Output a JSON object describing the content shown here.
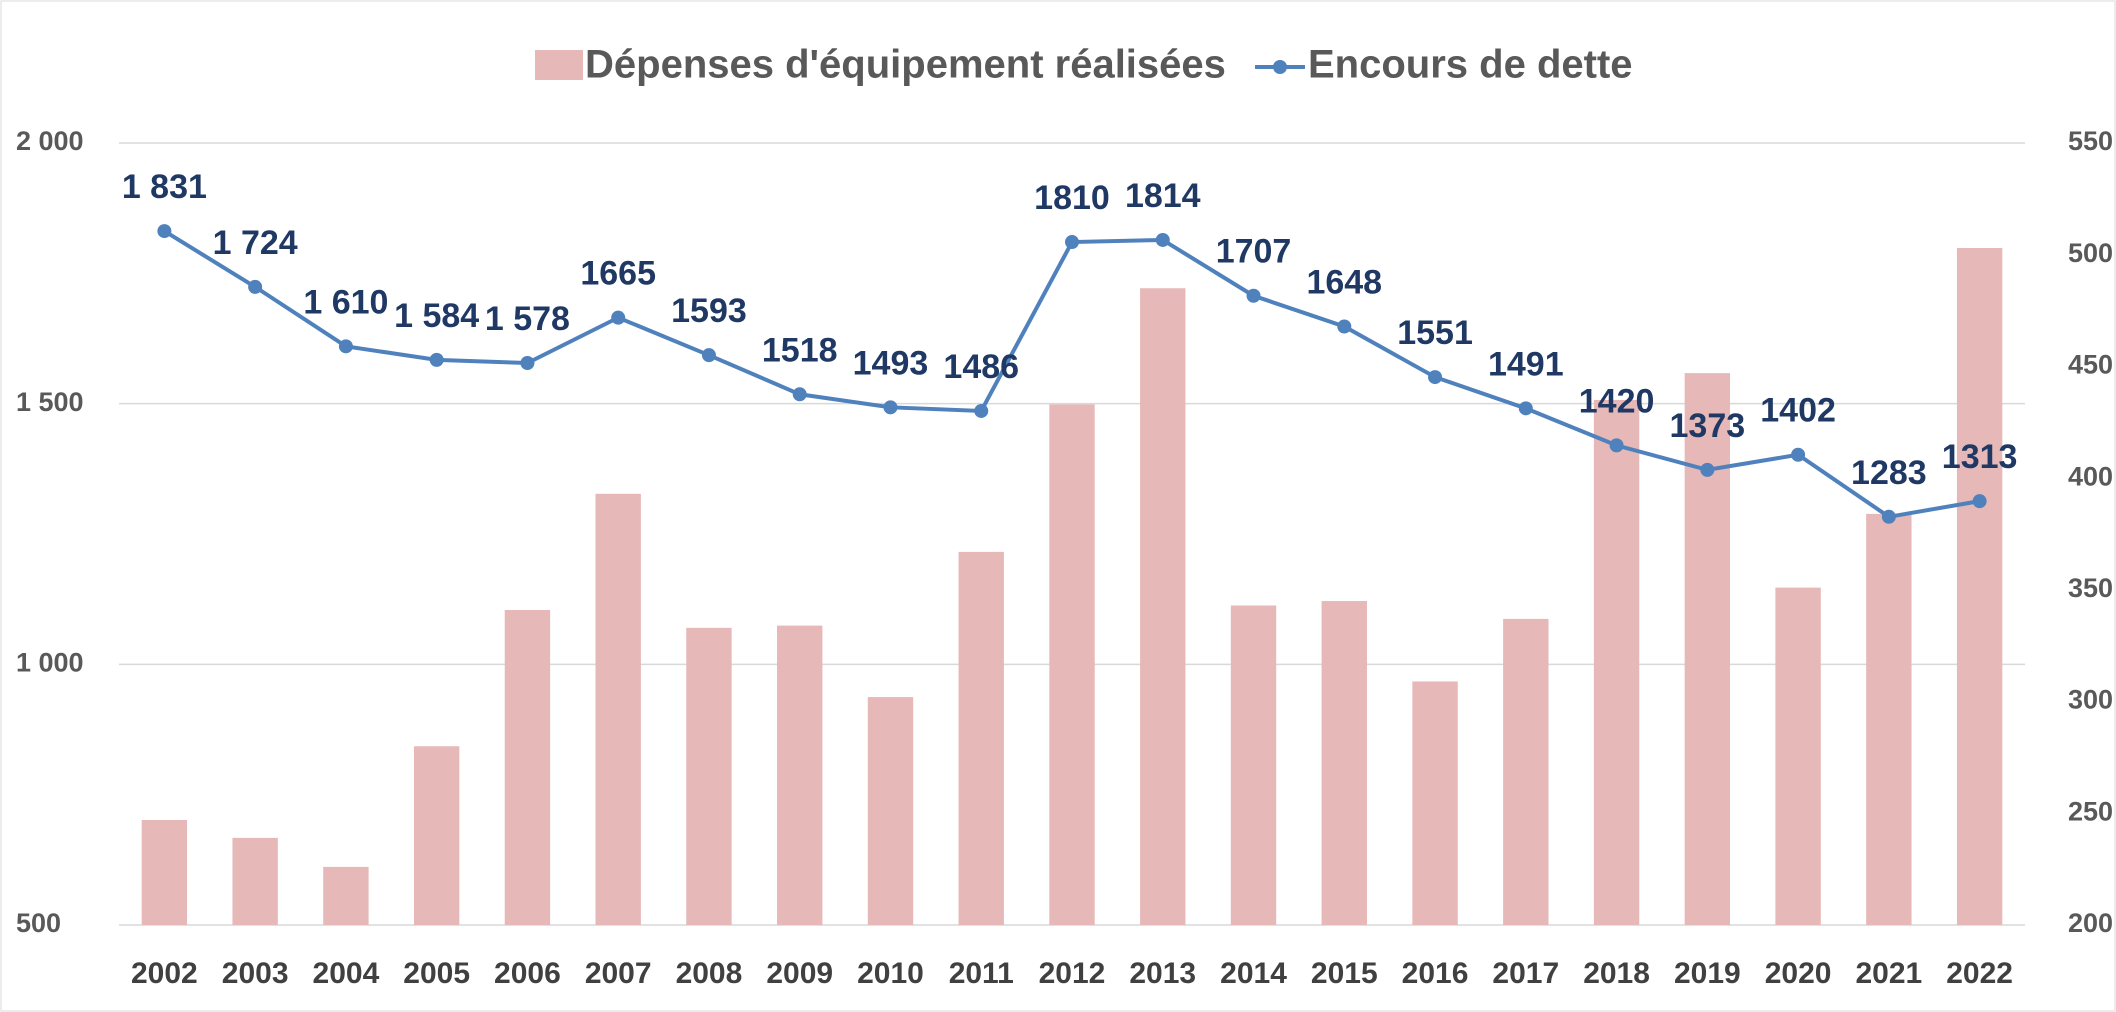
{
  "chart_data": {
    "type": "bar_line",
    "categories": [
      "2002",
      "2003",
      "2004",
      "2005",
      "2006",
      "2007",
      "2008",
      "2009",
      "2010",
      "2011",
      "2012",
      "2013",
      "2014",
      "2015",
      "2016",
      "2017",
      "2018",
      "2019",
      "2020",
      "2021",
      "2022"
    ],
    "series": [
      {
        "name": "Dépenses d'équipement réalisées",
        "type": "bar",
        "axis": "y2",
        "color": "#e6b8b7",
        "values": [
          247,
          239,
          226,
          280,
          341,
          393,
          333,
          334,
          302,
          367,
          433,
          485,
          343,
          345,
          309,
          337,
          435,
          447,
          351,
          384,
          503
        ]
      },
      {
        "name": "Encours de dette",
        "type": "line",
        "axis": "y",
        "color": "#4f81bd",
        "values": [
          1831,
          1724,
          1610,
          1584,
          1578,
          1665,
          1593,
          1518,
          1493,
          1486,
          1810,
          1814,
          1707,
          1648,
          1551,
          1491,
          1420,
          1373,
          1402,
          1283,
          1313
        ],
        "value_labels": [
          "1 831",
          "1 724",
          "1 610",
          "1 584",
          "1 578",
          "1665",
          "1593",
          "1518",
          "1493",
          "1486",
          "1810",
          "1814",
          "1707",
          "1648",
          "1551",
          "1491",
          "1420",
          "1373",
          "1402",
          "1283",
          "1313"
        ]
      }
    ],
    "ylim": [
      500,
      2000
    ],
    "yticks": [
      {
        "value": 2000,
        "label": "2 000"
      },
      {
        "value": 1500,
        "label": "1 500"
      },
      {
        "value": 1000,
        "label": "1 000"
      },
      500
    ],
    "y2lim": [
      200,
      550
    ],
    "y2ticks": [
      550,
      500,
      450,
      400,
      350,
      300,
      250,
      200
    ],
    "grid": true,
    "legend": "top"
  }
}
